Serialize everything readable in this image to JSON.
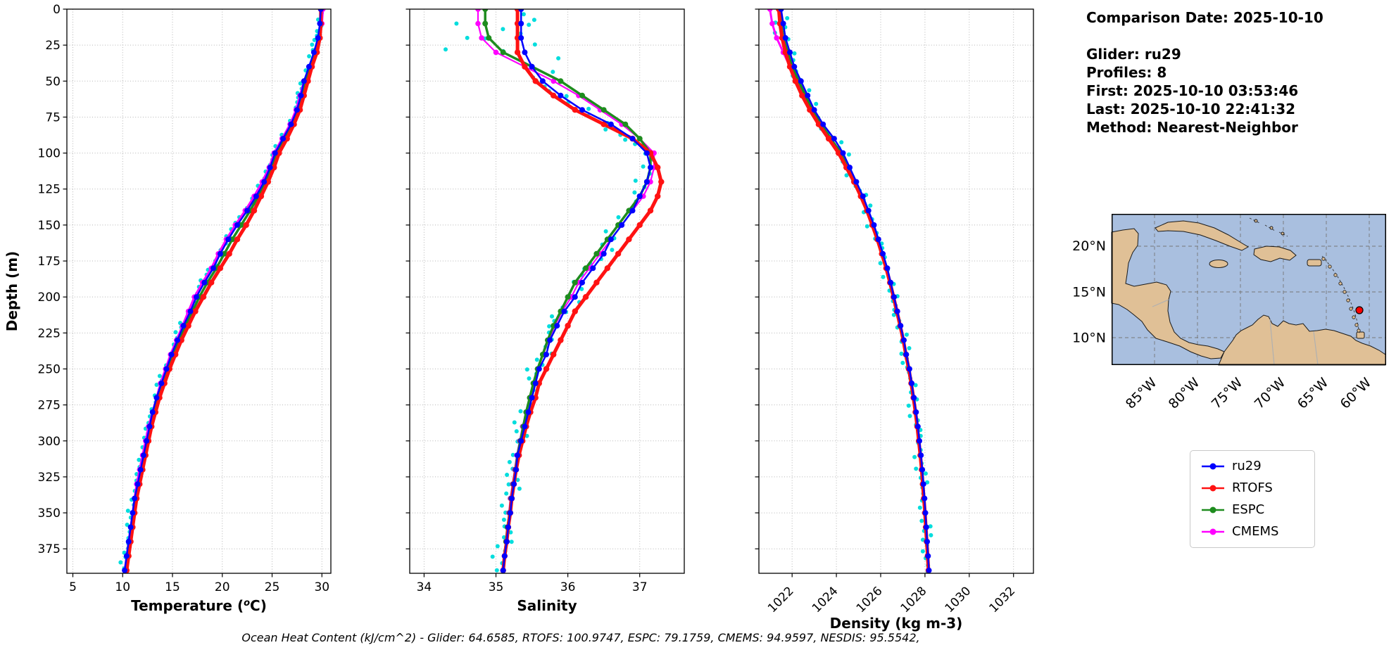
{
  "info": {
    "comparison_date": "Comparison Date: 2025-10-10",
    "glider": "Glider: ru29",
    "profiles": "Profiles: 8",
    "first": "First: 2025-10-10 03:53:46",
    "last": "Last: 2025-10-10 22:41:32",
    "method": "Method: Nearest-Neighbor"
  },
  "footer": {
    "text": "Ocean Heat Content (kJ/cm^2) - Glider: 64.6585,  RTOFS: 100.9747,  ESPC: 79.1759,  CMEMS: 94.9597,  NESDIS: 95.5542,"
  },
  "legend": {
    "items": [
      {
        "label": "ru29",
        "color": "#0000ff"
      },
      {
        "label": "RTOFS",
        "color": "#ff1212"
      },
      {
        "label": "ESPC",
        "color": "#1e8c1e"
      },
      {
        "label": "CMEMS",
        "color": "#ff00ff"
      }
    ]
  },
  "map": {
    "lat_ticks": [
      "20°N",
      "15°N",
      "10°N"
    ],
    "lon_ticks": [
      "85°W",
      "80°W",
      "75°W",
      "70°W",
      "65°W",
      "60°W"
    ],
    "marker_color": "#ff0000",
    "land_color": "#e0c096",
    "water_color": "#a9bfdf"
  },
  "chart_data": [
    {
      "type": "line",
      "xlabel": "Temperature (°C)",
      "ylabel": "Depth (m)",
      "xlim": [
        4.4,
        30.9
      ],
      "xticks": [
        5,
        10,
        15,
        20,
        25,
        30
      ],
      "ylim": [
        0,
        392
      ],
      "yticks": [
        0,
        25,
        50,
        75,
        100,
        125,
        150,
        175,
        200,
        225,
        250,
        275,
        300,
        325,
        350,
        375
      ],
      "grid": true,
      "rotate_xticks": false,
      "depths": [
        0,
        10,
        20,
        30,
        40,
        50,
        60,
        70,
        80,
        90,
        100,
        110,
        120,
        130,
        140,
        150,
        160,
        170,
        180,
        190,
        200,
        210,
        220,
        230,
        240,
        250,
        260,
        270,
        280,
        290,
        300,
        310,
        320,
        330,
        340,
        350,
        360,
        370,
        380,
        390
      ],
      "series": [
        {
          "name": "ru29",
          "color": "#0000ff",
          "lw": 2.5,
          "marker_r": 4,
          "values": [
            29.9,
            29.8,
            29.6,
            29.2,
            28.7,
            28.2,
            27.9,
            27.5,
            26.9,
            26.1,
            25.3,
            24.8,
            24.2,
            23.4,
            22.5,
            21.5,
            20.6,
            19.8,
            19.1,
            18.2,
            17.4,
            16.8,
            16.1,
            15.5,
            14.9,
            14.4,
            13.9,
            13.4,
            13.0,
            12.7,
            12.4,
            12.1,
            11.8,
            11.5,
            11.2,
            11.0,
            10.8,
            10.6,
            10.4,
            10.2
          ]
        },
        {
          "name": "RTOFS",
          "color": "#ff1212",
          "lw": 5,
          "marker_r": 4.2,
          "values": [
            29.9,
            29.9,
            29.8,
            29.5,
            29.0,
            28.6,
            28.2,
            27.8,
            27.2,
            26.5,
            25.7,
            25.2,
            24.6,
            23.9,
            23.2,
            22.4,
            21.5,
            20.7,
            19.8,
            18.9,
            18.1,
            17.3,
            16.6,
            15.9,
            15.3,
            14.7,
            14.2,
            13.7,
            13.3,
            12.9,
            12.6,
            12.3,
            12.0,
            11.7,
            11.4,
            11.2,
            11.0,
            10.8,
            10.6,
            10.4
          ]
        },
        {
          "name": "ESPC",
          "color": "#1e8c1e",
          "lw": 3.5,
          "marker_r": 4,
          "values": [
            29.9,
            29.85,
            29.7,
            29.3,
            28.8,
            28.3,
            28.0,
            27.6,
            27.0,
            26.3,
            25.5,
            25.0,
            24.4,
            23.6,
            22.8,
            21.9,
            21.0,
            20.2,
            19.4,
            18.5,
            17.7,
            17.0,
            16.3,
            15.7,
            15.1,
            14.6,
            14.1,
            13.6,
            13.2,
            12.8,
            12.5,
            12.2,
            11.9,
            11.6,
            11.3,
            11.1,
            10.9,
            10.7,
            10.5,
            10.3
          ]
        },
        {
          "name": "CMEMS",
          "color": "#ff00ff",
          "lw": 3,
          "marker_r": 3.8,
          "values": [
            30.1,
            30.0,
            29.8,
            29.4,
            28.8,
            28.2,
            27.8,
            27.4,
            26.8,
            26.0,
            25.2,
            24.7,
            24.0,
            23.2,
            22.3,
            21.3,
            20.4,
            19.6,
            18.9,
            18.0,
            17.2,
            16.6,
            16.0,
            15.4,
            14.8,
            14.3,
            13.8,
            13.4,
            13.0,
            12.6,
            12.3,
            12.0,
            11.7,
            11.4,
            11.2,
            11.0,
            10.8,
            10.6,
            10.4,
            10.2
          ]
        }
      ],
      "scatter": {
        "name": "ru29 raw observations",
        "color": "#00dddd",
        "r": 3,
        "amp": 0.35,
        "surface_boost": 1,
        "bias": -0.15,
        "extra_points": []
      }
    },
    {
      "type": "line",
      "xlabel": "Salinity",
      "ylabel": "Depth (m)",
      "xlim": [
        33.8,
        37.62
      ],
      "xticks": [
        34,
        35,
        36,
        37
      ],
      "ylim": [
        0,
        392
      ],
      "yticks": [
        0,
        25,
        50,
        75,
        100,
        125,
        150,
        175,
        200,
        225,
        250,
        275,
        300,
        325,
        350,
        375
      ],
      "grid": true,
      "rotate_xticks": false,
      "depths": [
        0,
        10,
        20,
        30,
        40,
        50,
        60,
        70,
        80,
        90,
        100,
        110,
        120,
        130,
        140,
        150,
        160,
        170,
        180,
        190,
        200,
        210,
        220,
        230,
        240,
        250,
        260,
        270,
        280,
        290,
        300,
        310,
        320,
        330,
        340,
        350,
        360,
        370,
        380,
        390
      ],
      "series": [
        {
          "name": "ru29",
          "color": "#0000ff",
          "lw": 2.5,
          "marker_r": 4,
          "values": [
            35.35,
            35.35,
            35.35,
            35.4,
            35.5,
            35.65,
            35.9,
            36.2,
            36.6,
            36.9,
            37.1,
            37.15,
            37.1,
            37.0,
            36.9,
            36.75,
            36.6,
            36.5,
            36.35,
            36.2,
            36.1,
            35.95,
            35.85,
            35.75,
            35.7,
            35.6,
            35.55,
            35.5,
            35.45,
            35.4,
            35.35,
            35.3,
            35.28,
            35.25,
            35.22,
            35.2,
            35.17,
            35.15,
            35.12,
            35.1
          ]
        },
        {
          "name": "RTOFS",
          "color": "#ff1212",
          "lw": 5,
          "marker_r": 4.2,
          "values": [
            35.3,
            35.3,
            35.3,
            35.3,
            35.4,
            35.55,
            35.8,
            36.1,
            36.5,
            36.9,
            37.15,
            37.25,
            37.3,
            37.25,
            37.15,
            37.0,
            36.85,
            36.7,
            36.55,
            36.4,
            36.25,
            36.1,
            36.0,
            35.9,
            35.8,
            35.7,
            35.6,
            35.55,
            35.48,
            35.42,
            35.37,
            35.32,
            35.28,
            35.25,
            35.22,
            35.2,
            35.17,
            35.15,
            35.12,
            35.1
          ]
        },
        {
          "name": "ESPC",
          "color": "#1e8c1e",
          "lw": 3.5,
          "marker_r": 4,
          "values": [
            34.85,
            34.85,
            34.9,
            35.1,
            35.5,
            35.9,
            36.2,
            36.5,
            36.8,
            37.0,
            37.15,
            37.15,
            37.1,
            37.0,
            36.85,
            36.7,
            36.55,
            36.4,
            36.25,
            36.1,
            36.0,
            35.9,
            35.8,
            35.72,
            35.65,
            35.58,
            35.52,
            35.47,
            35.42,
            35.38,
            35.34,
            35.3,
            35.27,
            35.24,
            35.21,
            35.19,
            35.16,
            35.14,
            35.12,
            35.1
          ]
        },
        {
          "name": "CMEMS",
          "color": "#ff00ff",
          "lw": 2.2,
          "marker_r": 3.8,
          "values": [
            34.75,
            34.75,
            34.8,
            35.0,
            35.4,
            35.8,
            36.15,
            36.45,
            36.75,
            37.0,
            37.2,
            37.2,
            37.15,
            37.05,
            36.9,
            36.75,
            36.6,
            36.45,
            36.3,
            36.15,
            36.05,
            35.92,
            35.82,
            35.73,
            35.66,
            35.58,
            35.52,
            35.47,
            35.42,
            35.37,
            35.33,
            35.29,
            35.26,
            35.23,
            35.2,
            35.18,
            35.16,
            35.14,
            35.12,
            35.1
          ]
        }
      ],
      "scatter": {
        "name": "ru29 raw observations",
        "color": "#00dddd",
        "r": 3,
        "amp": 0.13,
        "surface_boost": 4,
        "bias": -0.04,
        "extra_points": [
          [
            34.45,
            10
          ],
          [
            34.6,
            20
          ],
          [
            34.3,
            28
          ]
        ]
      }
    },
    {
      "type": "line",
      "xlabel": "Density (kg m-3)",
      "ylabel": "Depth (m)",
      "xlim": [
        1020.5,
        1032.9
      ],
      "xticks": [
        1022,
        1024,
        1026,
        1028,
        1030,
        1032
      ],
      "ylim": [
        0,
        392
      ],
      "yticks": [
        0,
        25,
        50,
        75,
        100,
        125,
        150,
        175,
        200,
        225,
        250,
        275,
        300,
        325,
        350,
        375
      ],
      "grid": true,
      "rotate_xticks": true,
      "depths": [
        0,
        10,
        20,
        30,
        40,
        50,
        60,
        70,
        80,
        90,
        100,
        110,
        120,
        130,
        140,
        150,
        160,
        170,
        180,
        190,
        200,
        210,
        220,
        230,
        240,
        250,
        260,
        270,
        280,
        290,
        300,
        310,
        320,
        330,
        340,
        350,
        360,
        370,
        380,
        390
      ],
      "series": [
        {
          "name": "ru29",
          "color": "#0000ff",
          "lw": 2.5,
          "marker_r": 4,
          "values": [
            1021.5,
            1021.6,
            1021.7,
            1021.9,
            1022.1,
            1022.4,
            1022.7,
            1023.0,
            1023.4,
            1023.9,
            1024.3,
            1024.6,
            1024.9,
            1025.2,
            1025.45,
            1025.7,
            1025.9,
            1026.1,
            1026.3,
            1026.45,
            1026.6,
            1026.75,
            1026.9,
            1027.05,
            1027.15,
            1027.3,
            1027.4,
            1027.5,
            1027.6,
            1027.68,
            1027.75,
            1027.82,
            1027.88,
            1027.93,
            1027.98,
            1028.02,
            1028.06,
            1028.1,
            1028.14,
            1028.18
          ]
        },
        {
          "name": "RTOFS",
          "color": "#ff1212",
          "lw": 5,
          "marker_r": 4.2,
          "values": [
            1021.4,
            1021.45,
            1021.55,
            1021.7,
            1021.9,
            1022.15,
            1022.45,
            1022.8,
            1023.2,
            1023.65,
            1024.1,
            1024.45,
            1024.8,
            1025.1,
            1025.38,
            1025.62,
            1025.85,
            1026.05,
            1026.25,
            1026.42,
            1026.58,
            1026.73,
            1026.88,
            1027.02,
            1027.14,
            1027.27,
            1027.38,
            1027.48,
            1027.57,
            1027.65,
            1027.72,
            1027.79,
            1027.85,
            1027.9,
            1027.95,
            1028.0,
            1028.04,
            1028.08,
            1028.12,
            1028.16
          ]
        },
        {
          "name": "ESPC",
          "color": "#1e8c1e",
          "lw": 3.5,
          "marker_r": 4,
          "values": [
            1021.45,
            1021.5,
            1021.6,
            1021.8,
            1022.0,
            1022.3,
            1022.6,
            1022.9,
            1023.3,
            1023.75,
            1024.2,
            1024.5,
            1024.85,
            1025.15,
            1025.4,
            1025.65,
            1025.88,
            1026.08,
            1026.27,
            1026.44,
            1026.6,
            1026.74,
            1026.89,
            1027.03,
            1027.15,
            1027.28,
            1027.39,
            1027.49,
            1027.58,
            1027.66,
            1027.73,
            1027.8,
            1027.86,
            1027.91,
            1027.96,
            1028.01,
            1028.05,
            1028.09,
            1028.13,
            1028.17
          ]
        },
        {
          "name": "CMEMS",
          "color": "#ff00ff",
          "lw": 3,
          "marker_r": 3.8,
          "values": [
            1021.0,
            1021.1,
            1021.3,
            1021.6,
            1021.9,
            1022.2,
            1022.5,
            1022.85,
            1023.25,
            1023.7,
            1024.15,
            1024.5,
            1024.85,
            1025.15,
            1025.42,
            1025.66,
            1025.89,
            1026.09,
            1026.28,
            1026.45,
            1026.61,
            1026.76,
            1026.9,
            1027.04,
            1027.16,
            1027.29,
            1027.4,
            1027.5,
            1027.59,
            1027.67,
            1027.74,
            1027.81,
            1027.87,
            1027.92,
            1027.97,
            1028.02,
            1028.06,
            1028.1,
            1028.14,
            1028.18
          ]
        }
      ],
      "scatter": {
        "name": "ru29 raw observations",
        "color": "#00dddd",
        "r": 3,
        "amp": 0.28,
        "surface_boost": 1.5,
        "bias": -0.05,
        "extra_points": []
      }
    }
  ]
}
